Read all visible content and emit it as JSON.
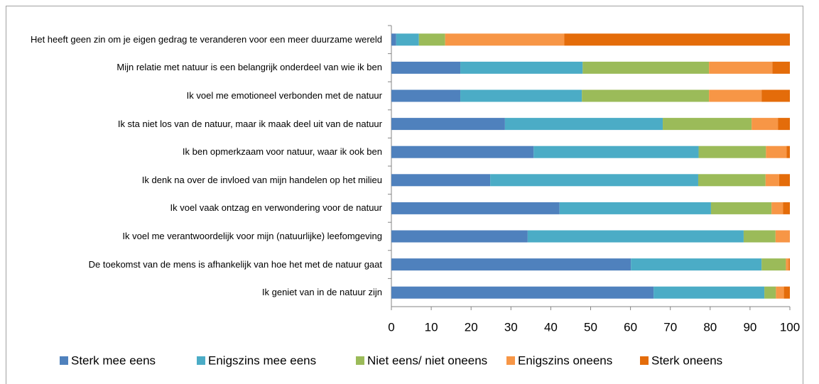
{
  "chart_data": {
    "type": "stacked-barh",
    "categories": [
      "Het heeft geen zin om je eigen gedrag te veranderen voor een meer duurzame wereld",
      "Mijn relatie met natuur is een belangrijk onderdeel van wie ik ben",
      "Ik voel me emotioneel verbonden met de natuur",
      "Ik sta niet los van de natuur, maar ik maak deel uit van de natuur",
      "Ik ben opmerkzaam voor natuur, waar ik ook ben",
      "Ik denk na over de invloed van mijn handelen op het milieu",
      "Ik voel vaak ontzag en verwondering voor de natuur",
      "Ik voel me verantwoordelijk voor mijn (natuurlijke) leefomgeving",
      "De toekomst van de mens is afhankelijk van hoe het met de natuur gaat",
      "Ik geniet van in de natuur zijn"
    ],
    "series": [
      {
        "name": "Sterk mee eens",
        "color": "#4f81bd",
        "values": [
          1.2,
          17.3,
          17.3,
          28.5,
          35.7,
          24.8,
          42.2,
          34.2,
          60.1,
          65.8
        ]
      },
      {
        "name": "Enigszins mee eens",
        "color": "#4bacc6",
        "values": [
          5.7,
          30.7,
          30.5,
          39.6,
          41.4,
          52.2,
          38.0,
          54.2,
          32.8,
          27.8
        ]
      },
      {
        "name": "Niet eens/ niet oneens",
        "color": "#9bbb59",
        "values": [
          6.6,
          31.7,
          31.9,
          22.3,
          16.9,
          16.9,
          15.2,
          8.0,
          6.1,
          2.9
        ]
      },
      {
        "name": "Enigszins oneens",
        "color": "#f79646",
        "values": [
          29.9,
          15.9,
          13.2,
          6.6,
          5.2,
          3.4,
          2.9,
          3.6,
          0.7,
          2.0
        ]
      },
      {
        "name": "Sterk oneens",
        "color": "#e46c0a",
        "values": [
          56.6,
          4.4,
          7.1,
          3.0,
          0.8,
          2.7,
          1.7,
          0,
          0.3,
          1.5
        ]
      }
    ],
    "xlim": [
      0,
      100
    ],
    "xticks": [
      0,
      10,
      20,
      30,
      40,
      50,
      60,
      70,
      80,
      90,
      100
    ],
    "legend": "bottom"
  }
}
